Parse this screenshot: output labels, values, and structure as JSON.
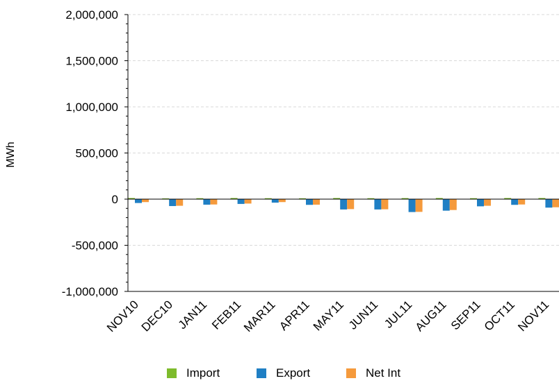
{
  "chart_data": {
    "type": "bar",
    "ylabel": "MWh",
    "xlabel": "",
    "title": "",
    "ylim": [
      -1000000,
      2000000
    ],
    "yticks": [
      -1000000,
      -500000,
      0,
      500000,
      1000000,
      1500000,
      2000000
    ],
    "ytick_labels": [
      "-1,000,000",
      "-500,000",
      "0",
      "500,000",
      "1,000,000",
      "1,500,000",
      "2,000,000"
    ],
    "grid": true,
    "legend_position": "bottom",
    "categories": [
      "NOV10",
      "DEC10",
      "JAN11",
      "FEB11",
      "MAR11",
      "APR11",
      "MAY11",
      "JUN11",
      "JUL11",
      "AUG11",
      "SEP11",
      "OCT11",
      "NOV11"
    ],
    "series": [
      {
        "name": "Import",
        "color": "#7dbb2c",
        "values": [
          12000,
          8000,
          10000,
          12000,
          10000,
          9000,
          12000,
          10000,
          11000,
          12000,
          10000,
          12000,
          12000
        ]
      },
      {
        "name": "Export",
        "color": "#1f7fc4",
        "values": [
          -42000,
          -75000,
          -60000,
          -52000,
          -38000,
          -62000,
          -112000,
          -112000,
          -140000,
          -125000,
          -78000,
          -62000,
          -92000
        ]
      },
      {
        "name": "Net Int",
        "color": "#f59a3c",
        "values": [
          -32000,
          -72000,
          -58000,
          -48000,
          -32000,
          -60000,
          -108000,
          -110000,
          -138000,
          -118000,
          -72000,
          -58000,
          -88000
        ]
      }
    ]
  }
}
